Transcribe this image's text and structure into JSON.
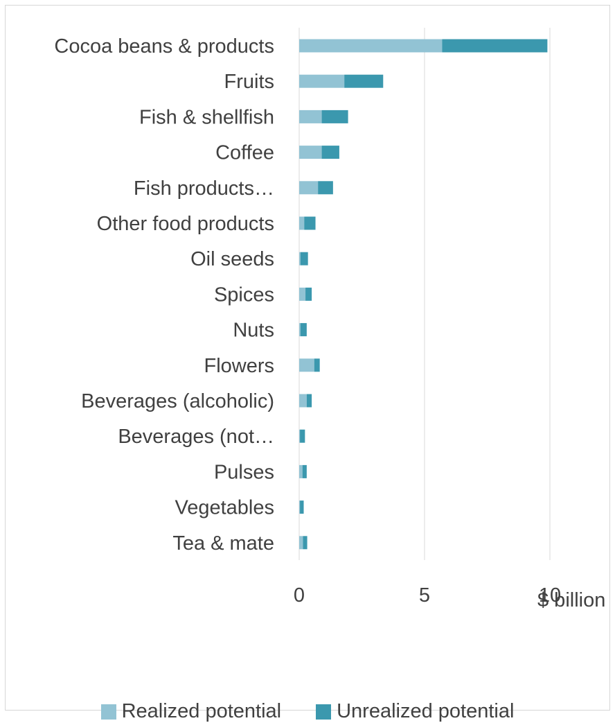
{
  "colors": {
    "realized": "#92c3d4",
    "unrealized": "#3b98ae",
    "grid": "#d9d9d9",
    "text": "#404040"
  },
  "chart_data": {
    "type": "bar",
    "orientation": "horizontal",
    "stacked": true,
    "categories": [
      "Cocoa beans & products",
      "Fruits",
      "Fish & shellfish",
      "Coffee",
      "Fish products…",
      "Other food products",
      "Oil seeds",
      "Spices",
      "Nuts",
      "Flowers",
      "Beverages (alcoholic)",
      "Beverages (not…",
      "Pulses",
      "Vegetables",
      "Tea & mate"
    ],
    "series": [
      {
        "name": "Realized potential",
        "values": [
          5.7,
          1.8,
          0.9,
          0.9,
          0.75,
          0.2,
          0.05,
          0.25,
          0.05,
          0.6,
          0.3,
          0.03,
          0.13,
          0.03,
          0.15
        ]
      },
      {
        "name": "Unrealized potential",
        "values": [
          4.2,
          1.55,
          1.05,
          0.7,
          0.6,
          0.45,
          0.3,
          0.25,
          0.25,
          0.22,
          0.2,
          0.2,
          0.17,
          0.15,
          0.17
        ]
      }
    ],
    "xlabel": "$ billion",
    "xlim": [
      0,
      12
    ],
    "xticks": [
      0,
      5,
      10
    ],
    "grid": "vertical",
    "legend_position": "bottom"
  }
}
